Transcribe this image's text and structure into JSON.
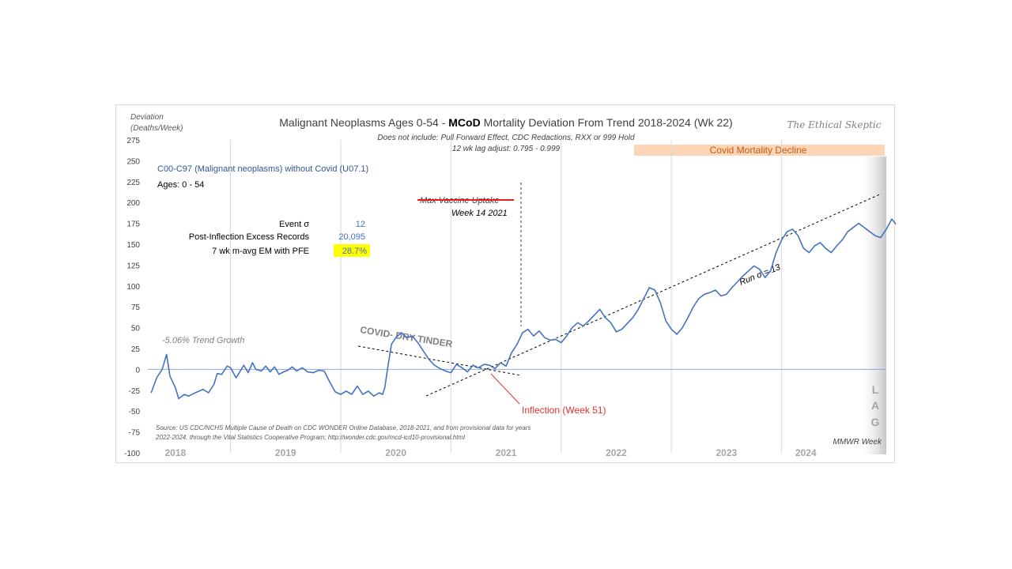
{
  "chart_data": {
    "type": "line",
    "title": {
      "prefix": "Malignant Neoplasms Ages 0-54 - ",
      "bold": "MCoD",
      "suffix": " Mortality Deviation From Trend  2018-2024 (Wk 22)"
    },
    "subtitle_lines": [
      "Does not include: Pull Forward Effect,  CDC Redactions, RXX or 999 Hold",
      "12 wk lag adjust: 0.795 - 0.999"
    ],
    "watermark": "The Ethical Skeptic",
    "ylabel_lines": [
      "Deviation",
      "(Deaths/Week)"
    ],
    "xlabel": "MMWR Week",
    "ylim": [
      -100,
      275
    ],
    "yticks": [
      275,
      250,
      225,
      200,
      175,
      150,
      125,
      100,
      75,
      50,
      25,
      0,
      -25,
      -50,
      -75,
      -100
    ],
    "xlim": [
      2017.75,
      2024.45
    ],
    "year_labels": [
      {
        "label": "2018",
        "x": 2018.0
      },
      {
        "label": "2019",
        "x": 2019.0
      },
      {
        "label": "2020",
        "x": 2020.0
      },
      {
        "label": "2021",
        "x": 2021.0
      },
      {
        "label": "2022",
        "x": 2022.0
      },
      {
        "label": "2023",
        "x": 2023.0
      },
      {
        "label": "2024",
        "x": 2023.72
      }
    ],
    "year_dividers": [
      2018.5,
      2019.5,
      2020.5,
      2021.5,
      2022.5,
      2023.5
    ],
    "series": [
      {
        "name": "C00-C97 (Malignant neoplasms) without Covid (U07.1)",
        "color": "#4472c4",
        "points": [
          [
            2017.78,
            -28
          ],
          [
            2017.83,
            -10
          ],
          [
            2017.88,
            0
          ],
          [
            2017.92,
            18
          ],
          [
            2017.95,
            -8
          ],
          [
            2018.0,
            -22
          ],
          [
            2018.03,
            -35
          ],
          [
            2018.08,
            -30
          ],
          [
            2018.12,
            -32
          ],
          [
            2018.18,
            -28
          ],
          [
            2018.25,
            -24
          ],
          [
            2018.3,
            -28
          ],
          [
            2018.35,
            -18
          ],
          [
            2018.38,
            -5
          ],
          [
            2018.42,
            -6
          ],
          [
            2018.47,
            4
          ],
          [
            2018.5,
            2
          ],
          [
            2018.55,
            -10
          ],
          [
            2018.58,
            -4
          ],
          [
            2018.62,
            5
          ],
          [
            2018.66,
            -4
          ],
          [
            2018.7,
            8
          ],
          [
            2018.73,
            0
          ],
          [
            2018.78,
            -2
          ],
          [
            2018.82,
            4
          ],
          [
            2018.86,
            -3
          ],
          [
            2018.9,
            3
          ],
          [
            2018.94,
            -6
          ],
          [
            2018.98,
            -3
          ],
          [
            2019.02,
            -1
          ],
          [
            2019.06,
            3
          ],
          [
            2019.1,
            -2
          ],
          [
            2019.15,
            2
          ],
          [
            2019.2,
            -3
          ],
          [
            2019.25,
            -4
          ],
          [
            2019.3,
            -1
          ],
          [
            2019.35,
            -2
          ],
          [
            2019.4,
            -15
          ],
          [
            2019.45,
            -27
          ],
          [
            2019.5,
            -30
          ],
          [
            2019.55,
            -26
          ],
          [
            2019.6,
            -30
          ],
          [
            2019.65,
            -20
          ],
          [
            2019.7,
            -30
          ],
          [
            2019.75,
            -26
          ],
          [
            2019.8,
            -32
          ],
          [
            2019.85,
            -28
          ],
          [
            2019.88,
            -30
          ],
          [
            2019.9,
            -22
          ],
          [
            2019.93,
            5
          ],
          [
            2019.96,
            30
          ],
          [
            2020.0,
            38
          ],
          [
            2020.05,
            44
          ],
          [
            2020.1,
            38
          ],
          [
            2020.15,
            40
          ],
          [
            2020.2,
            32
          ],
          [
            2020.25,
            22
          ],
          [
            2020.3,
            12
          ],
          [
            2020.35,
            5
          ],
          [
            2020.4,
            1
          ],
          [
            2020.45,
            -2
          ],
          [
            2020.5,
            -4
          ],
          [
            2020.55,
            6
          ],
          [
            2020.6,
            2
          ],
          [
            2020.65,
            -3
          ],
          [
            2020.7,
            5
          ],
          [
            2020.75,
            2
          ],
          [
            2020.8,
            6
          ],
          [
            2020.85,
            5
          ],
          [
            2020.9,
            1
          ],
          [
            2020.95,
            8
          ],
          [
            2021.0,
            4
          ],
          [
            2021.05,
            20
          ],
          [
            2021.1,
            30
          ],
          [
            2021.15,
            44
          ],
          [
            2021.2,
            48
          ],
          [
            2021.25,
            40
          ],
          [
            2021.3,
            46
          ],
          [
            2021.35,
            38
          ],
          [
            2021.4,
            35
          ],
          [
            2021.45,
            36
          ],
          [
            2021.5,
            32
          ],
          [
            2021.55,
            40
          ],
          [
            2021.6,
            50
          ],
          [
            2021.65,
            56
          ],
          [
            2021.7,
            52
          ],
          [
            2021.75,
            58
          ],
          [
            2021.8,
            65
          ],
          [
            2021.85,
            72
          ],
          [
            2021.9,
            62
          ],
          [
            2021.95,
            56
          ],
          [
            2022.0,
            45
          ],
          [
            2022.05,
            48
          ],
          [
            2022.1,
            55
          ],
          [
            2022.15,
            62
          ],
          [
            2022.2,
            72
          ],
          [
            2022.25,
            85
          ],
          [
            2022.3,
            98
          ],
          [
            2022.35,
            95
          ],
          [
            2022.4,
            80
          ],
          [
            2022.45,
            58
          ],
          [
            2022.5,
            48
          ],
          [
            2022.55,
            42
          ],
          [
            2022.6,
            50
          ],
          [
            2022.65,
            62
          ],
          [
            2022.7,
            75
          ],
          [
            2022.75,
            85
          ],
          [
            2022.8,
            90
          ],
          [
            2022.85,
            92
          ],
          [
            2022.9,
            95
          ],
          [
            2022.95,
            88
          ],
          [
            2023.0,
            90
          ],
          [
            2023.05,
            98
          ],
          [
            2023.1,
            105
          ],
          [
            2023.15,
            112
          ],
          [
            2023.2,
            118
          ],
          [
            2023.25,
            124
          ],
          [
            2023.3,
            120
          ],
          [
            2023.35,
            110
          ],
          [
            2023.4,
            118
          ],
          [
            2023.45,
            140
          ],
          [
            2023.5,
            155
          ],
          [
            2023.55,
            165
          ],
          [
            2023.6,
            168
          ],
          [
            2023.65,
            160
          ],
          [
            2023.7,
            145
          ],
          [
            2023.75,
            140
          ],
          [
            2023.8,
            148
          ],
          [
            2023.85,
            152
          ],
          [
            2023.9,
            145
          ],
          [
            2023.95,
            140
          ],
          [
            2024.0,
            148
          ],
          [
            2024.05,
            155
          ],
          [
            2024.1,
            165
          ],
          [
            2024.15,
            170
          ],
          [
            2024.2,
            175
          ],
          [
            2024.25,
            170
          ],
          [
            2024.3,
            165
          ],
          [
            2024.35,
            160
          ],
          [
            2024.4,
            158
          ],
          [
            2024.45,
            168
          ],
          [
            2024.5,
            180
          ],
          [
            2024.55,
            172
          ]
        ]
      }
    ],
    "legend_items": [
      "C00-C97 (Malignant neoplasms) without Covid (U07.1)",
      "Ages: 0 - 54"
    ],
    "stats": [
      {
        "label": "Event σ",
        "value": "12"
      },
      {
        "label": "Post-Inflection Excess Records",
        "value": "20,095"
      },
      {
        "label": "7 wk m-avg EM with PFE",
        "value": "28.7%"
      }
    ],
    "annotations": {
      "trend_growth": "-5.06% Trend Growth",
      "dry_tinder": "COVID- DRY TINDER",
      "vaccine_struck": "Max Vaccine Uptake",
      "vaccine_week": "Week 14 2021",
      "covid_decline": "Covid Mortality Decline",
      "run_sigma": "Run σ = 13",
      "inflection": "Inflection (Week 51)",
      "lag": [
        "L",
        "A",
        "G"
      ],
      "source_lines": [
        "Source: US CDC/NCHS Multiple Cause of Death on CDC WONDER Online Database, 2018-2021, and from provisional data for years",
        "2022-2024, through the Vital Statistics Cooperative Program; http://wonder.cdc.gov/mcd-icd10-provisional.html"
      ]
    },
    "colors": {
      "series": "#4472c4",
      "zero_line": "#8ea9db",
      "grid": "#d9d9d9",
      "title": "#404040",
      "stat_value": "#4472c4",
      "highlight": "#ffff00",
      "decline_band": "#fbd5b5",
      "decline_text": "#c55a11",
      "inflection": "#e03030",
      "lag_gray": "#a6a6a6"
    },
    "grid": false,
    "legend_position": "top-left"
  }
}
